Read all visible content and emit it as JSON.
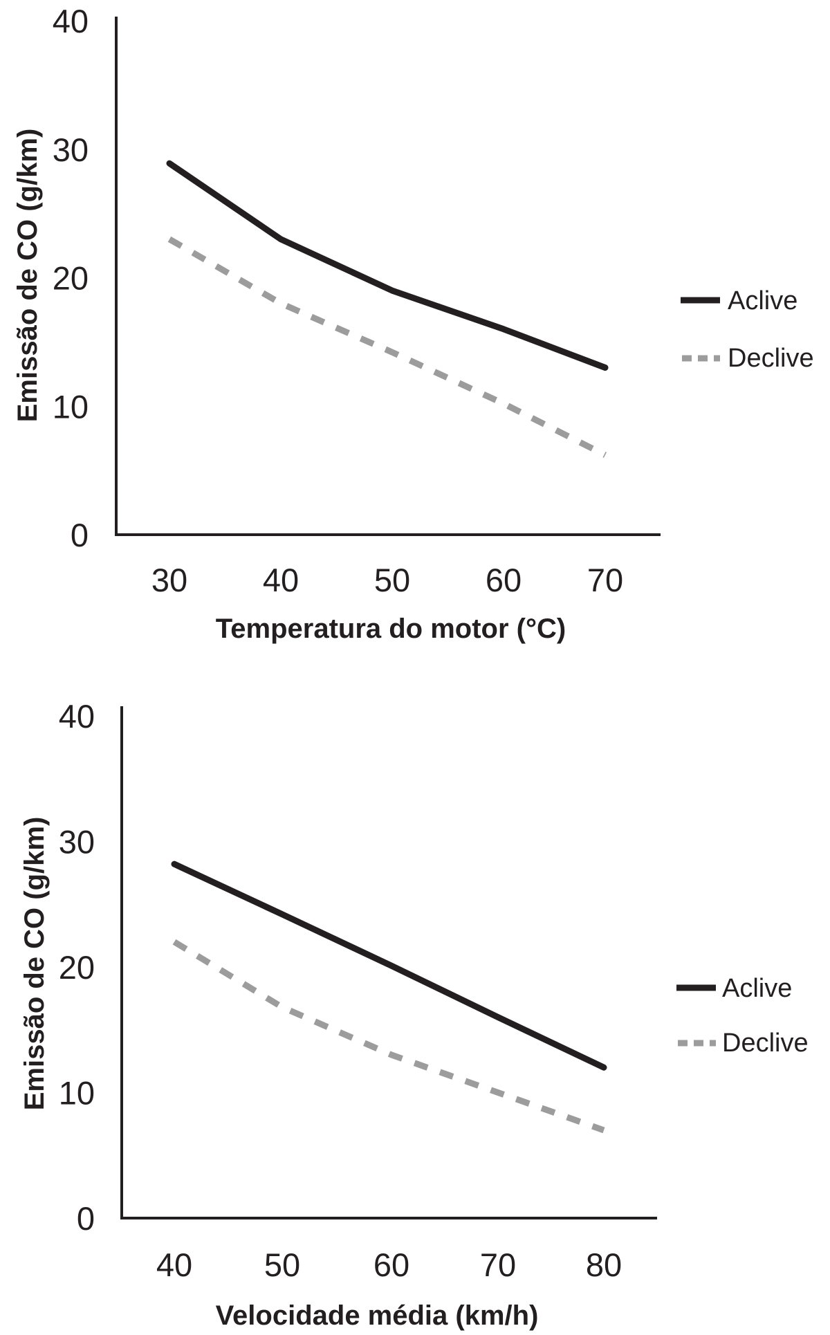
{
  "chart_data": [
    {
      "type": "line",
      "xlabel": "Temperatura do motor (°C)",
      "ylabel": "Emissão de CO (g/km)",
      "x": [
        30,
        40,
        50,
        60,
        70
      ],
      "xticks": [
        "30",
        "40",
        "50",
        "60",
        "70"
      ],
      "yticks": [
        "0",
        "10",
        "20",
        "30",
        "40"
      ],
      "ylim": [
        0,
        40
      ],
      "grid": false,
      "legend_position": "right",
      "series": [
        {
          "name": "Aclive",
          "values": [
            28.9,
            23.0,
            19.0,
            16.0,
            13.0
          ],
          "color": "#231f20",
          "style": "solid"
        },
        {
          "name": "Declive",
          "values": [
            23.0,
            18.0,
            14.2,
            10.2,
            6.2
          ],
          "color": "#9d9c9c",
          "style": "dashed"
        }
      ]
    },
    {
      "type": "line",
      "xlabel": "Velocidade média (km/h)",
      "ylabel": "Emissão de CO (g/km)",
      "x": [
        40,
        50,
        60,
        70,
        80
      ],
      "xticks": [
        "40",
        "50",
        "60",
        "70",
        "80"
      ],
      "yticks": [
        "0",
        "10",
        "20",
        "30",
        "40"
      ],
      "ylim": [
        0,
        40
      ],
      "grid": false,
      "legend_position": "right",
      "series": [
        {
          "name": "Aclive",
          "values": [
            28.2,
            24.2,
            20.1,
            16.0,
            12.0
          ],
          "color": "#231f20",
          "style": "solid"
        },
        {
          "name": "Declive",
          "values": [
            22.0,
            16.8,
            13.0,
            10.0,
            7.0
          ],
          "color": "#9d9c9c",
          "style": "dashed"
        }
      ]
    }
  ]
}
